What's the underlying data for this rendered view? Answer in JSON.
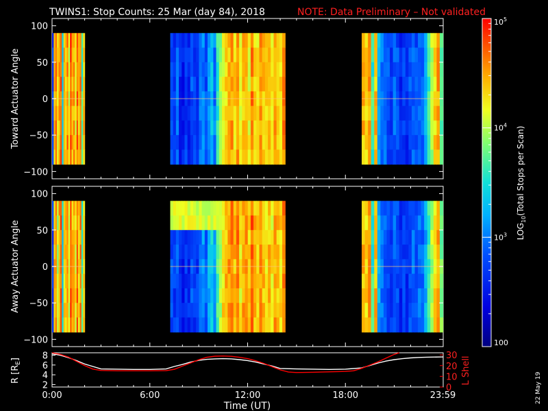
{
  "title": "TWINS1: Stop Counts: 25 Mar (day  84), 2018",
  "note": "NOTE: Data Preliminary – Not validated",
  "colorbar": {
    "label_prefix": "LOG",
    "label_sub": "10",
    "label_suffix": "(Total Stops per Scan)",
    "tick_labels": [
      "10",
      "10",
      "10",
      "100"
    ],
    "tick_exps": [
      "5",
      "4",
      "3",
      ""
    ],
    "range": [
      100,
      100000
    ],
    "scale": "log"
  },
  "datestamp": "22 May 19",
  "colors": {
    "line_white": "#ffffff",
    "line_red": "#ff0000",
    "background": "#000000"
  },
  "chart_data": [
    {
      "type": "heatmap",
      "ylabel": "Toward Actuator Angle",
      "ylim": [
        -110,
        110
      ],
      "yticks": [
        "100",
        "50",
        "0",
        "−50",
        "−100"
      ],
      "ytick_values": [
        100,
        50,
        0,
        -50,
        -100
      ],
      "xlim": [
        0,
        24
      ],
      "data_y_range": [
        -90,
        90
      ],
      "segments": [
        {
          "start_hr": 0.0,
          "end_hr": 2.0,
          "profile": [
            2.7,
            4.4,
            4.6,
            4.2,
            4.5,
            4.7,
            3.4,
            4.4,
            4.3,
            4.6,
            4.1,
            4.8,
            4.4,
            4.5,
            4.2,
            4.7,
            4.3,
            4.6,
            3.6,
            4.4
          ]
        },
        {
          "start_hr": 7.25,
          "end_hr": 14.3,
          "profile": [
            2.8,
            2.7,
            2.9,
            2.6,
            2.5,
            2.7,
            2.6,
            2.8,
            2.7,
            2.6,
            2.9,
            3.0,
            2.8,
            3.1,
            3.3,
            3.0,
            3.6,
            3.9,
            4.2,
            4.3,
            4.4,
            4.5,
            4.3,
            4.6,
            4.1,
            4.4,
            4.5,
            4.2,
            4.6,
            4.3,
            4.2,
            4.5,
            4.4,
            4.3,
            4.4,
            4.2,
            4.5,
            4.4,
            4.3,
            4.6
          ]
        },
        {
          "start_hr": 19.0,
          "end_hr": 23.98,
          "profile": [
            4.4,
            4.3,
            4.5,
            3.6,
            4.4,
            3.2,
            3.0,
            2.9,
            2.8,
            2.7,
            2.9,
            2.8,
            2.6,
            2.7,
            2.6,
            2.8,
            2.9,
            2.8,
            3.0,
            2.9,
            3.2,
            3.6,
            4.0,
            4.3,
            4.5,
            3.8
          ]
        }
      ]
    },
    {
      "type": "heatmap",
      "ylabel": "Away Actuator Angle",
      "ylim": [
        -110,
        110
      ],
      "yticks": [
        "100",
        "50",
        "0",
        "−50",
        "−100"
      ],
      "ytick_values": [
        100,
        50,
        0,
        -50,
        -100
      ],
      "xlim": [
        0,
        24
      ],
      "data_y_range": [
        -90,
        90
      ],
      "segments": [
        {
          "start_hr": 0.0,
          "end_hr": 2.0,
          "profile": [
            2.7,
            4.4,
            4.6,
            4.0,
            4.5,
            4.7,
            3.4,
            4.3,
            4.4,
            4.6,
            4.0,
            4.8,
            4.4,
            4.5,
            4.2,
            4.7,
            4.3,
            4.6,
            3.6,
            4.4
          ]
        },
        {
          "start_hr": 7.25,
          "end_hr": 14.3,
          "profile": [
            2.8,
            2.7,
            2.9,
            2.6,
            2.5,
            2.7,
            2.6,
            2.8,
            2.7,
            2.7,
            2.9,
            3.1,
            2.9,
            3.2,
            3.4,
            3.1,
            3.7,
            4.0,
            4.3,
            4.4,
            4.5,
            4.6,
            4.4,
            4.6,
            4.2,
            4.5,
            4.6,
            4.3,
            4.7,
            4.4,
            4.3,
            4.5,
            4.4,
            4.3,
            4.4,
            4.2,
            4.5,
            4.4,
            4.3,
            4.6
          ]
        },
        {
          "start_hr": 19.0,
          "end_hr": 23.98,
          "profile": [
            4.4,
            4.3,
            4.5,
            3.6,
            4.4,
            3.2,
            3.0,
            2.9,
            2.8,
            2.7,
            2.9,
            2.8,
            2.6,
            2.7,
            2.6,
            2.8,
            2.9,
            2.8,
            3.0,
            2.9,
            3.2,
            3.6,
            4.0,
            4.3,
            4.5,
            3.8
          ]
        }
      ],
      "high_band": {
        "start_hr": 7.25,
        "end_hr": 10.6,
        "y_from": 65,
        "y_to": 90,
        "value": 4.1
      }
    },
    {
      "type": "line",
      "ylabel_left": "R [R",
      "ylabel_left_sub": "E",
      "ylabel_left_end": "]",
      "ylabel_right": "L Shell",
      "y_left_ticks": [
        "8",
        "6",
        "4",
        "2"
      ],
      "y_left_tick_values": [
        8,
        6,
        4,
        2
      ],
      "y_right_ticks": [
        "30",
        "20",
        "10",
        "0"
      ],
      "y_right_tick_values": [
        30,
        20,
        10,
        0
      ],
      "ylim_left": [
        1.5,
        8.5
      ],
      "ylim_right": [
        0,
        32
      ],
      "xlabel": "Time (UT)",
      "xticks": [
        "0:00",
        "6:00",
        "12:00",
        "18:00",
        "23:59"
      ],
      "xtick_values": [
        0,
        6,
        12,
        18,
        23.98
      ],
      "xlim": [
        0,
        24
      ],
      "series": [
        {
          "axis": "left",
          "color": "white",
          "x": [
            0,
            0.5,
            1,
            1.5,
            2,
            3,
            4,
            5,
            6,
            7,
            7.5,
            8,
            8.5,
            9,
            9.5,
            10,
            10.5,
            11,
            11.5,
            12,
            12.5,
            13,
            13.5,
            14,
            15,
            16,
            17,
            18,
            19,
            19.5,
            20,
            20.5,
            21,
            21.5,
            22,
            22.5,
            23,
            23.98
          ],
          "y": [
            8.3,
            8.0,
            7.5,
            6.9,
            6.2,
            5.2,
            5.15,
            5.1,
            5.1,
            5.2,
            5.7,
            6.1,
            6.6,
            6.95,
            7.15,
            7.25,
            7.3,
            7.25,
            7.1,
            6.9,
            6.6,
            6.2,
            5.8,
            5.3,
            5.2,
            5.15,
            5.1,
            5.15,
            5.4,
            5.9,
            6.4,
            6.8,
            7.1,
            7.3,
            7.45,
            7.55,
            7.6,
            7.65
          ]
        },
        {
          "axis": "right",
          "color": "red",
          "x": [
            0,
            0.5,
            1,
            1.5,
            2,
            2.5,
            3,
            4,
            5,
            6,
            7,
            7.5,
            8,
            8.5,
            9,
            9.5,
            10,
            10.5,
            11,
            11.5,
            12,
            12.5,
            13,
            13.5,
            14,
            14.5,
            15,
            16,
            17,
            18,
            18.5,
            19,
            19.5,
            20,
            20.5,
            21,
            21.3
          ],
          "y": [
            32,
            30.5,
            28,
            24,
            20,
            16.8,
            15.5,
            15.2,
            15.2,
            15.2,
            15.3,
            16.5,
            19.5,
            22.5,
            25.5,
            27.8,
            28.8,
            29.0,
            28.7,
            27.8,
            26.5,
            24.5,
            22,
            19,
            16,
            14,
            13.6,
            13.8,
            14.2,
            14.6,
            15.2,
            17.5,
            20.5,
            23.5,
            27,
            30.5,
            32
          ]
        }
      ]
    }
  ]
}
